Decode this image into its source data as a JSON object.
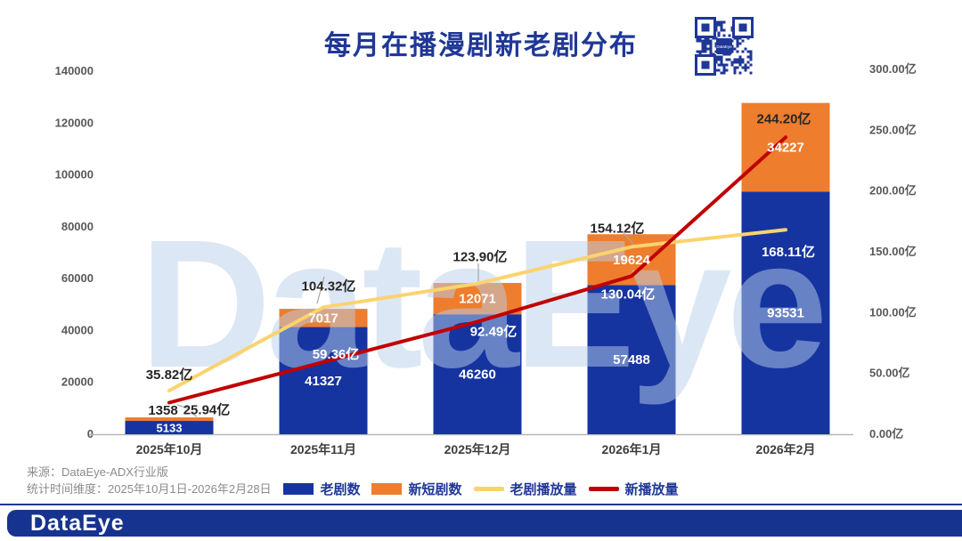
{
  "title": "每月在播漫剧新老剧分布",
  "watermark": "DataEye",
  "qr_center_label": "DataEye",
  "source": {
    "line1": "来源：DataEye-ADX行业版",
    "line2": "统计时间维度：2025年10月1日-2026年2月28日"
  },
  "footer": {
    "logo": "DataEye"
  },
  "colors": {
    "bar_old": "#1634a0",
    "bar_new": "#ee7d2d",
    "line_old": "#fbd36e",
    "line_new": "#c00000",
    "title_navy": "#1f3796",
    "axis_text": "#595959",
    "x_label": "#3d3d3d",
    "label_dark": "#262626",
    "label_light": "#ffffff",
    "watermark": "#b9d0ec",
    "leader_gray": "#a6a6a6",
    "baseline_gray": "#b7b7b7",
    "footer_bar": "#16338f"
  },
  "chart_data": {
    "type": "bar+line combo (stacked bars, dual axis)",
    "title": "每月在播漫剧新老剧分布",
    "categories": [
      "2025年10月",
      "2025年11月",
      "2025年12月",
      "2026年1月",
      "2026年2月"
    ],
    "series": [
      {
        "name": "老剧数",
        "type": "bar",
        "axis": "left",
        "color": "#1634a0",
        "values": [
          5133,
          41327,
          46260,
          57488,
          93531
        ],
        "value_labels": [
          "5133",
          "41327",
          "46260",
          "57488",
          "93531"
        ]
      },
      {
        "name": "新短剧数",
        "type": "bar",
        "axis": "left",
        "color": "#ee7d2d",
        "values": [
          1358,
          7017,
          12071,
          19624,
          34227
        ],
        "value_labels": [
          "1358",
          "7017",
          "12071",
          "19624",
          "34227"
        ]
      },
      {
        "name": "老剧播放量",
        "type": "line",
        "axis": "right",
        "color": "#fbd36e",
        "values": [
          35.82,
          104.32,
          123.9,
          154.12,
          168.11
        ],
        "value_labels": [
          "35.82亿",
          "104.32亿",
          "123.90亿",
          "154.12亿",
          "168.11亿"
        ]
      },
      {
        "name": "新播放量",
        "type": "line",
        "axis": "right",
        "color": "#c00000",
        "values": [
          25.94,
          59.36,
          92.49,
          130.04,
          244.2
        ],
        "value_labels": [
          "25.94亿",
          "59.36亿",
          "92.49亿",
          "130.04亿",
          "244.20亿"
        ]
      }
    ],
    "left_axis": {
      "max": 140000,
      "step": 20000,
      "ticks": [
        "0",
        "20000",
        "40000",
        "60000",
        "80000",
        "100000",
        "120000",
        "140000"
      ]
    },
    "right_axis": {
      "max": 300,
      "step": 50,
      "ticks": [
        "0.00亿",
        "50.00亿",
        "100.00亿",
        "150.00亿",
        "200.00亿",
        "250.00亿",
        "300.00亿"
      ]
    },
    "legend": [
      "老剧数",
      "新短剧数",
      "老剧播放量",
      "新播放量"
    ],
    "legend_position": "bottom",
    "grid": false
  }
}
